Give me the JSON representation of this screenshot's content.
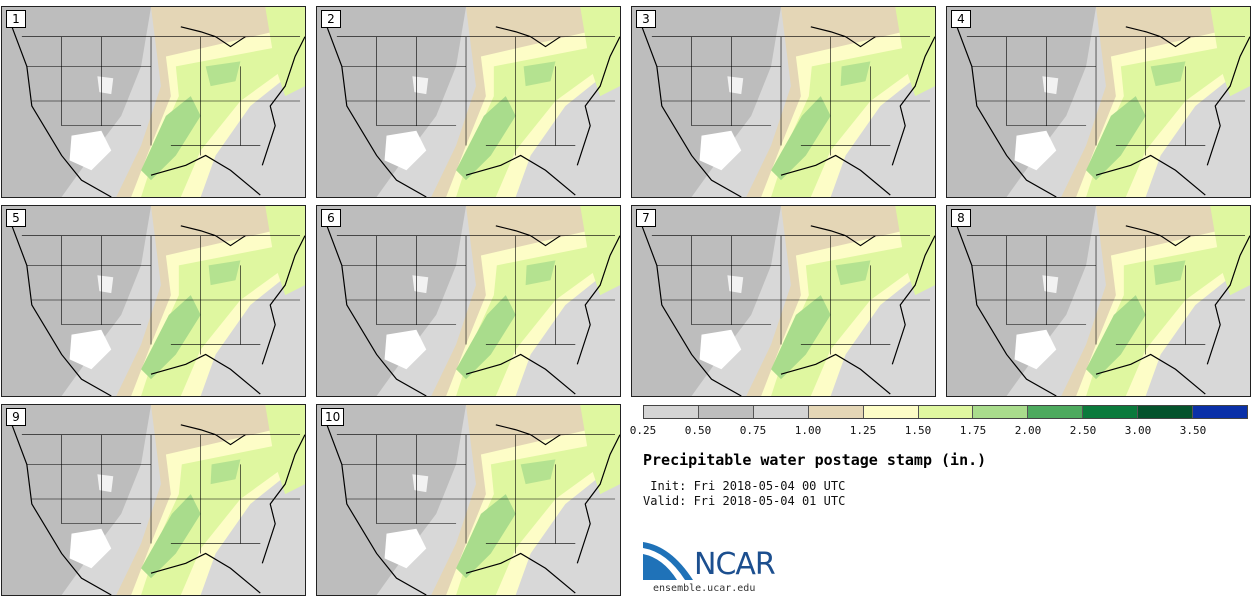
{
  "title": "Precipitable water postage stamp (in.)",
  "init_line": " Init: Fri 2018-05-04 00 UTC",
  "valid_line": "Valid: Fri 2018-05-04 01 UTC",
  "logo_text": "NCAR",
  "site": "ensemble.ucar.edu",
  "stamps": [
    "1",
    "2",
    "3",
    "4",
    "5",
    "6",
    "7",
    "8",
    "9",
    "10"
  ],
  "colorbar": {
    "ticks": [
      "0.25",
      "0.50",
      "0.75",
      "1.00",
      "1.25",
      "1.50",
      "1.75",
      "2.00",
      "2.50",
      "3.00",
      "3.50"
    ],
    "colors": [
      "#d4d4d4",
      "#bdbdbd",
      "#d4d4d4",
      "#e4d6b6",
      "#fdfdc7",
      "#dff7a0",
      "#a9dc8c",
      "#4daa5e",
      "#0b7a3c",
      "#04532c",
      "#0a30a8"
    ]
  },
  "map_colors": {
    "ocean": "#c2c2c2",
    "land_low": "#d8d8d8",
    "land_mid": "#a8a8a8",
    "land_dry": "#ffffff",
    "tan": "#e4d6b6",
    "yellow": "#fdfdc7",
    "lightgreen": "#dff7a0",
    "green": "#a9dc8c",
    "border": "#000000"
  }
}
